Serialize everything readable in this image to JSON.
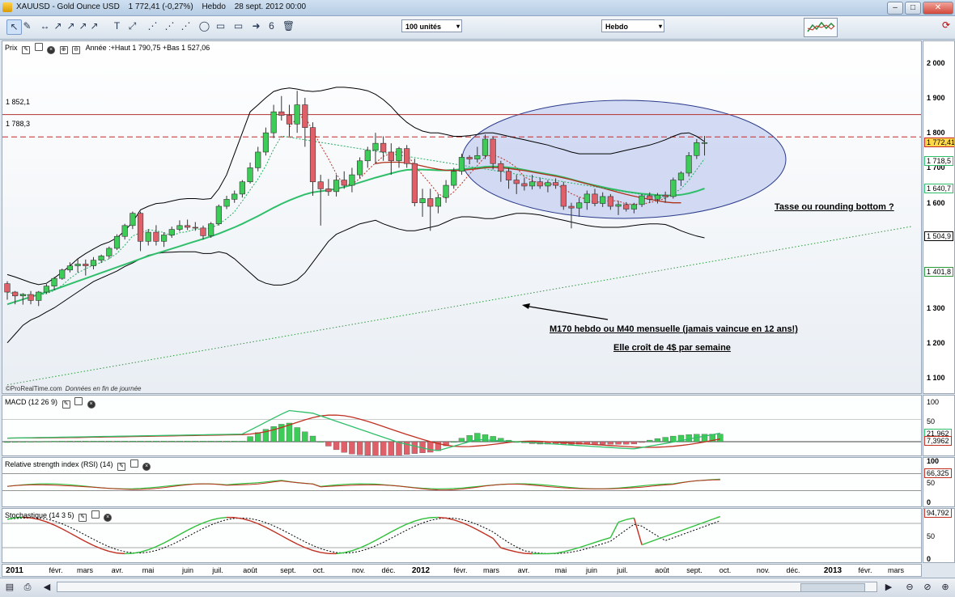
{
  "window": {
    "symbol": "XAUUSD - Gold Ounce USD",
    "last": "1 772,41 (-0,27%)",
    "period": "Hebdo",
    "date": "28 sept. 2012 00:00",
    "minimize": "–",
    "maximize": "□",
    "close": "✕"
  },
  "toolbar": {
    "units": "100 unités",
    "timeframe": "Hebdo",
    "combo_arrow": "▾",
    "tools": [
      "↖",
      "✎",
      "↔",
      "↗",
      "↗",
      "↗",
      "↗",
      "T",
      "⤢",
      "⋰",
      "⋰",
      "⋰",
      "◯",
      "▭",
      "▭",
      "➜",
      "6",
      "🗑"
    ]
  },
  "price_panel": {
    "header": "Prix",
    "info": "Année :+Haut 1 790,75 +Bas 1 527,06",
    "resistance_1": "1 852,1",
    "resistance_2": "1 788,3",
    "footer_brand": "©ProRealTime.com",
    "footer_note": "Données en fin de journée",
    "annotation_cup": "Tasse ou rounding bottom ?",
    "annotation_ma": "M170 hebdo ou M40 mensuelle (jamais vaincue en 12 ans!)",
    "annotation_slope": "Elle croît de 4$ par semaine",
    "axis_ticks": [
      "2 000",
      "1 900",
      "1 800",
      "1 700",
      "1 600",
      "1 500",
      "1 400",
      "1 300",
      "1 200",
      "1 100"
    ],
    "tag_last": "1 772,41",
    "tag_bb_mid": "1 718,5",
    "tag_ma_green": "1 640,7",
    "tag_bb_low": "1 504,9",
    "tag_ma170": "1 401,8"
  },
  "macd_panel": {
    "header": "MACD (12 26 9)",
    "ticks": [
      "100",
      "50"
    ],
    "tag_1": "21,962",
    "tag_2": "7,3962"
  },
  "rsi_panel": {
    "header": "Relative strength index (RSI) (14)",
    "ticks": [
      "100",
      "50",
      "0"
    ],
    "tag": "66,325"
  },
  "stoch_panel": {
    "header": "Stochastique (14 3 5)",
    "ticks": [
      "100",
      "50",
      "0"
    ],
    "tag": "94,792"
  },
  "time_axis": {
    "labels": [
      "2011",
      "févr.",
      "mars",
      "avr.",
      "mai",
      "juin",
      "juil.",
      "août",
      "sept.",
      "oct.",
      "nov.",
      "déc.",
      "2012",
      "févr.",
      "mars",
      "avr.",
      "mai",
      "juin",
      "juil.",
      "août",
      "sept.",
      "oct.",
      "nov.",
      "déc.",
      "2013",
      "févr.",
      "mars"
    ]
  },
  "colors": {
    "bull": "#3dcc57",
    "bear": "#e0606a",
    "ma_green": "#2fbf6a",
    "ma_dotted_red": "#c03020",
    "ma_red": "#b03018",
    "bollinger": "#000000",
    "resistance": "#b03030",
    "ellipse_fill": "#c6cff0",
    "ellipse_stroke": "#2a3a8a"
  },
  "chart_data": [
    {
      "type": "candlestick",
      "title": "XAUUSD - Gold Ounce USD",
      "period": "Hebdo",
      "ylim": [
        1040,
        2050
      ],
      "yticks": [
        1100,
        1200,
        1300,
        1400,
        1500,
        1600,
        1700,
        1800,
        1900,
        2000
      ],
      "x_start": "2011-01-07",
      "candles": [
        [
          1369,
          1376,
          1323,
          1345
        ],
        [
          1345,
          1348,
          1310,
          1334
        ],
        [
          1334,
          1342,
          1309,
          1338
        ],
        [
          1338,
          1348,
          1310,
          1321
        ],
        [
          1321,
          1348,
          1305,
          1345
        ],
        [
          1345,
          1368,
          1340,
          1362
        ],
        [
          1362,
          1388,
          1350,
          1384
        ],
        [
          1384,
          1412,
          1380,
          1408
        ],
        [
          1408,
          1430,
          1401,
          1420
        ],
        [
          1420,
          1440,
          1401,
          1425
        ],
        [
          1425,
          1438,
          1392,
          1420
        ],
        [
          1420,
          1445,
          1410,
          1436
        ],
        [
          1436,
          1452,
          1428,
          1448
        ],
        [
          1448,
          1475,
          1440,
          1470
        ],
        [
          1470,
          1510,
          1465,
          1504
        ],
        [
          1504,
          1540,
          1495,
          1535
        ],
        [
          1535,
          1575,
          1525,
          1570
        ],
        [
          1570,
          1575,
          1462,
          1490
        ],
        [
          1490,
          1525,
          1478,
          1516
        ],
        [
          1516,
          1536,
          1478,
          1490
        ],
        [
          1490,
          1516,
          1474,
          1508
        ],
        [
          1508,
          1532,
          1500,
          1524
        ],
        [
          1524,
          1550,
          1518,
          1535
        ],
        [
          1535,
          1552,
          1522,
          1530
        ],
        [
          1530,
          1545,
          1520,
          1528
        ],
        [
          1528,
          1535,
          1495,
          1506
        ],
        [
          1506,
          1545,
          1500,
          1540
        ],
        [
          1540,
          1595,
          1535,
          1590
        ],
        [
          1590,
          1620,
          1582,
          1610
        ],
        [
          1610,
          1635,
          1600,
          1625
        ],
        [
          1625,
          1665,
          1615,
          1660
        ],
        [
          1660,
          1715,
          1655,
          1700
        ],
        [
          1700,
          1760,
          1690,
          1745
        ],
        [
          1745,
          1815,
          1735,
          1800
        ],
        [
          1800,
          1880,
          1785,
          1860
        ],
        [
          1860,
          1905,
          1835,
          1850
        ],
        [
          1850,
          1880,
          1790,
          1825
        ],
        [
          1825,
          1920,
          1800,
          1880
        ],
        [
          1880,
          1900,
          1760,
          1815
        ],
        [
          1815,
          1830,
          1620,
          1660
        ],
        [
          1660,
          1680,
          1535,
          1640
        ],
        [
          1640,
          1668,
          1620,
          1632
        ],
        [
          1632,
          1680,
          1618,
          1665
        ],
        [
          1665,
          1690,
          1640,
          1650
        ],
        [
          1650,
          1700,
          1630,
          1680
        ],
        [
          1680,
          1730,
          1670,
          1720
        ],
        [
          1720,
          1760,
          1700,
          1750
        ],
        [
          1750,
          1800,
          1710,
          1770
        ],
        [
          1770,
          1790,
          1720,
          1745
        ],
        [
          1745,
          1770,
          1680,
          1720
        ],
        [
          1720,
          1760,
          1700,
          1755
        ],
        [
          1755,
          1765,
          1700,
          1712
        ],
        [
          1712,
          1726,
          1590,
          1600
        ],
        [
          1600,
          1640,
          1560,
          1612
        ],
        [
          1612,
          1640,
          1520,
          1590
        ],
        [
          1590,
          1625,
          1570,
          1615
        ],
        [
          1615,
          1665,
          1600,
          1650
        ],
        [
          1650,
          1700,
          1640,
          1690
        ],
        [
          1690,
          1740,
          1680,
          1730
        ],
        [
          1730,
          1736,
          1710,
          1725
        ],
        [
          1725,
          1760,
          1715,
          1735
        ],
        [
          1735,
          1795,
          1725,
          1782
        ],
        [
          1782,
          1790,
          1695,
          1712
        ],
        [
          1712,
          1720,
          1660,
          1690
        ],
        [
          1690,
          1700,
          1640,
          1665
        ],
        [
          1665,
          1680,
          1625,
          1655
        ],
        [
          1655,
          1672,
          1635,
          1648
        ],
        [
          1648,
          1680,
          1638,
          1660
        ],
        [
          1660,
          1672,
          1640,
          1648
        ],
        [
          1648,
          1665,
          1630,
          1658
        ],
        [
          1658,
          1670,
          1640,
          1650
        ],
        [
          1650,
          1660,
          1580,
          1590
        ],
        [
          1590,
          1600,
          1527,
          1585
        ],
        [
          1585,
          1615,
          1560,
          1600
        ],
        [
          1600,
          1635,
          1580,
          1625
        ],
        [
          1625,
          1640,
          1590,
          1598
        ],
        [
          1598,
          1630,
          1588,
          1618
        ],
        [
          1618,
          1625,
          1580,
          1590
        ],
        [
          1590,
          1605,
          1565,
          1595
        ],
        [
          1595,
          1602,
          1575,
          1582
        ],
        [
          1582,
          1600,
          1570,
          1595
        ],
        [
          1595,
          1625,
          1588,
          1620
        ],
        [
          1620,
          1630,
          1600,
          1610
        ],
        [
          1610,
          1628,
          1598,
          1622
        ],
        [
          1622,
          1632,
          1600,
          1618
        ],
        [
          1618,
          1672,
          1612,
          1665
        ],
        [
          1665,
          1690,
          1648,
          1685
        ],
        [
          1685,
          1745,
          1675,
          1735
        ],
        [
          1735,
          1782,
          1725,
          1772
        ],
        [
          1772,
          1791,
          1735,
          1772
        ]
      ],
      "ma_green": [
        1310,
        1317,
        1324,
        1331,
        1338,
        1345,
        1352,
        1360,
        1368,
        1376,
        1384,
        1392,
        1400,
        1408,
        1416,
        1424,
        1432,
        1440,
        1448,
        1455,
        1462,
        1469,
        1476,
        1483,
        1490,
        1497,
        1504,
        1512,
        1521,
        1530,
        1540,
        1551,
        1562,
        1574,
        1586,
        1597,
        1607,
        1616,
        1624,
        1630,
        1633,
        1636,
        1640,
        1645,
        1651,
        1658,
        1665,
        1672,
        1678,
        1684,
        1690,
        1694,
        1695,
        1695,
        1694,
        1693,
        1693,
        1694,
        1696,
        1698,
        1700,
        1703,
        1704,
        1703,
        1701,
        1698,
        1694,
        1690,
        1686,
        1682,
        1678,
        1673,
        1667,
        1661,
        1655,
        1650,
        1645,
        1640,
        1636,
        1632,
        1629,
        1626,
        1624,
        1622,
        1621,
        1621,
        1623,
        1627,
        1633,
        1641
      ],
      "ma_red": [
        null,
        null,
        null,
        null,
        null,
        null,
        null,
        null,
        null,
        null,
        null,
        null,
        null,
        null,
        null,
        null,
        null,
        null,
        null,
        null,
        null,
        null,
        null,
        null,
        null,
        null,
        null,
        null,
        null,
        null,
        null,
        null,
        null,
        null,
        null,
        null,
        null,
        null,
        null,
        null,
        null,
        null,
        null,
        null,
        null,
        null,
        null,
        1712,
        1715,
        1716,
        1716,
        1714,
        1710,
        1705,
        1700,
        1696,
        1693,
        1692,
        1693,
        1695,
        1697,
        1700,
        1701,
        1700,
        1698,
        1695,
        1692,
        1688,
        1684,
        1680,
        1676,
        1671,
        1666,
        1660,
        1654,
        1648,
        1642,
        1636,
        1630,
        1624,
        1619,
        1614,
        1610,
        1606,
        1602,
        1600,
        1600,
        null,
        null,
        null
      ],
      "bollinger_upper": [
        1395,
        1388,
        1380,
        1372,
        1366,
        1370,
        1385,
        1402,
        1420,
        1440,
        1455,
        1468,
        1480,
        1488,
        1500,
        1520,
        1545,
        1580,
        1590,
        1598,
        1600,
        1605,
        1610,
        1612,
        1612,
        1610,
        1612,
        1640,
        1680,
        1740,
        1800,
        1860,
        1880,
        1900,
        1918,
        1925,
        1928,
        1925,
        1920,
        1918,
        1920,
        1925,
        1930,
        1930,
        1928,
        1925,
        1920,
        1910,
        1895,
        1875,
        1850,
        1830,
        1815,
        1805,
        1800,
        1800,
        1795,
        1790,
        1790,
        1792,
        1795,
        1800,
        1800,
        1795,
        1790,
        1785,
        1780,
        1775,
        1770,
        1765,
        1758,
        1752,
        1745,
        1740,
        1740,
        1740,
        1740,
        1740,
        1745,
        1750,
        1755,
        1760,
        1765,
        1772,
        1780,
        1790,
        1798,
        1800,
        1790,
        1775
      ],
      "bollinger_lower": [
        1200,
        1225,
        1250,
        1265,
        1275,
        1288,
        1300,
        1315,
        1330,
        1345,
        1360,
        1375,
        1385,
        1395,
        1405,
        1418,
        1428,
        1440,
        1450,
        1455,
        1458,
        1459,
        1460,
        1460,
        1460,
        1455,
        1455,
        1460,
        1455,
        1440,
        1420,
        1400,
        1380,
        1370,
        1365,
        1365,
        1370,
        1380,
        1400,
        1430,
        1460,
        1490,
        1510,
        1520,
        1530,
        1540,
        1545,
        1550,
        1540,
        1532,
        1525,
        1520,
        1520,
        1525,
        1530,
        1535,
        1545,
        1555,
        1560,
        1560,
        1558,
        1555,
        1555,
        1560,
        1565,
        1570,
        1570,
        1568,
        1565,
        1560,
        1555,
        1550,
        1545,
        1540,
        1535,
        1532,
        1530,
        1530,
        1530,
        1532,
        1535,
        1538,
        1540,
        1540,
        1538,
        1530,
        1520,
        1512,
        1505,
        1500
      ],
      "resistances": [
        1852.1,
        1788.3
      ],
      "m170": {
        "from_week": 0,
        "from": 1080,
        "to_week": 100,
        "to": 1480
      }
    },
    {
      "type": "line",
      "title": "MACD (12 26 9)",
      "ylim": [
        -50,
        130
      ]
    },
    {
      "type": "line",
      "title": "Relative strength index (RSI) (14)",
      "ylim": [
        0,
        100
      ]
    },
    {
      "type": "line",
      "title": "Stochastique (14 3 5)",
      "ylim": [
        0,
        100
      ]
    }
  ]
}
